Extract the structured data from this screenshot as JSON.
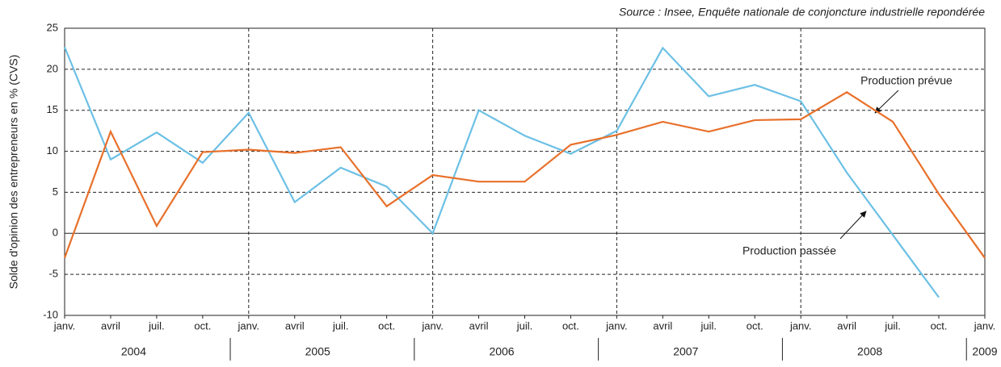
{
  "chart_data": {
    "type": "line",
    "source": "Source : Insee, Enquête nationale de conjoncture industrielle repondérée",
    "y_label": "Solde d'opinion des entrepreneurs en % (CVS)",
    "categories": [
      "janv.",
      "avril",
      "juil.",
      "oct.",
      "janv.",
      "avril",
      "juil.",
      "oct.",
      "janv.",
      "avril",
      "juil.",
      "oct.",
      "janv.",
      "avril",
      "juil.",
      "oct.",
      "janv.",
      "avril",
      "juil.",
      "oct.",
      "janv."
    ],
    "years": [
      "2004",
      "2005",
      "2006",
      "2007",
      "2008",
      "2009"
    ],
    "ylim": [
      -10,
      25
    ],
    "yticks": [
      -10,
      -5,
      0,
      5,
      10,
      15,
      20,
      25
    ],
    "grid": true,
    "series": [
      {
        "name": "Production passée",
        "color": "#6cc0e5",
        "values": [
          22.7,
          9,
          12.3,
          8.6,
          14.7,
          3.8,
          8,
          5.7,
          0,
          15,
          11.9,
          9.7,
          12.5,
          22.6,
          16.7,
          18.1,
          16.1,
          7.4,
          -0.2,
          -7.8,
          null
        ]
      },
      {
        "name": "Production prévue",
        "color": "#e8702a",
        "values": [
          -3,
          12.4,
          0.9,
          9.9,
          10.2,
          9.8,
          10.5,
          3.3,
          7.1,
          6.3,
          6.3,
          10.8,
          12,
          13.6,
          12.4,
          13.8,
          13.9,
          17.2,
          13.6,
          4.8,
          -3
        ]
      }
    ]
  }
}
